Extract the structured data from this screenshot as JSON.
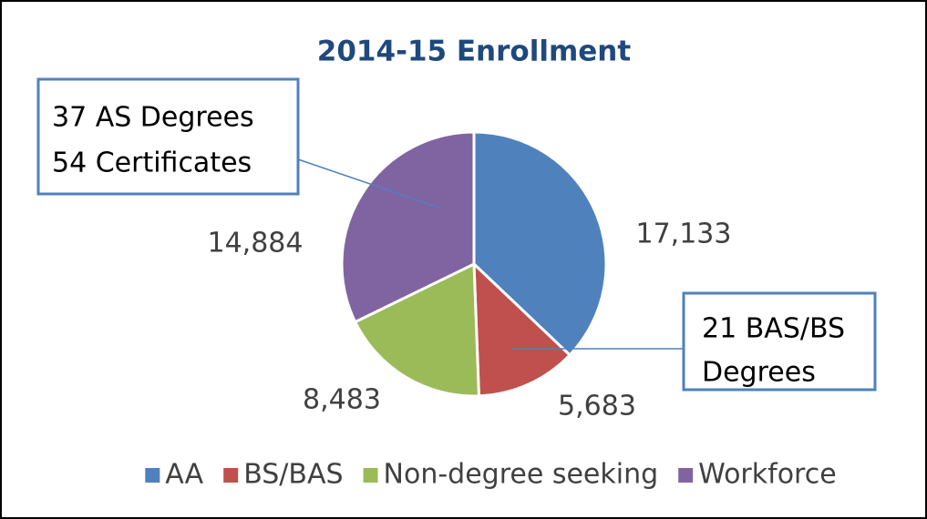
{
  "chart_data": {
    "type": "pie",
    "title": "2014-15 Enrollment",
    "categories": [
      "AA",
      "BS/BAS",
      "Non-degree seeking",
      "Workforce"
    ],
    "values": [
      17133,
      5683,
      8483,
      14884
    ],
    "value_labels": [
      "17,133",
      "5,683",
      "8,483",
      "14,884"
    ],
    "colors": [
      "#4f81bd",
      "#c0504d",
      "#9bbb59",
      "#8064a2"
    ],
    "annotations": [
      {
        "lines": [
          "37 AS Degrees",
          "54 Certificates"
        ]
      },
      {
        "lines": [
          "21 BAS/BS",
          "Degrees"
        ]
      }
    ],
    "legend": "bottom"
  }
}
